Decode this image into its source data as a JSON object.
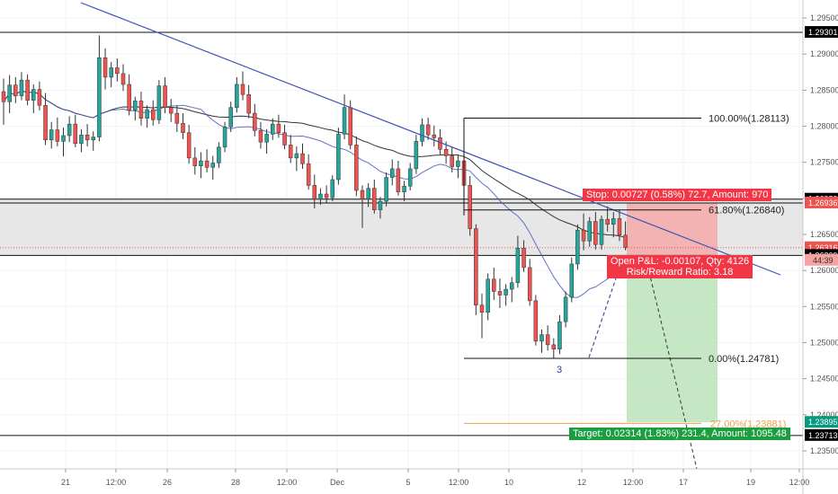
{
  "chart_data": {
    "type": "candlestick",
    "symbol_pair": "GBP/USD",
    "y_axis": {
      "range": [
        1.2325,
        1.2975
      ],
      "ticks": [
        "1.29500",
        "1.29000",
        "1.28500",
        "1.28000",
        "1.27500",
        "1.27000",
        "1.26500",
        "1.26000",
        "1.25500",
        "1.25000",
        "1.24500",
        "1.24000",
        "1.23500"
      ]
    },
    "x_axis": {
      "ticks": [
        "21",
        "12:00",
        "26",
        "28",
        "12:00",
        "Dec",
        "5",
        "12:00",
        "10",
        "12",
        "12:00",
        "17",
        "19",
        "12:00"
      ]
    },
    "price_tags": [
      {
        "value": 1.29301,
        "label": "1.29301",
        "color": "#000000"
      },
      {
        "value": 1.26989,
        "label": "1.26989",
        "color": "#000000"
      },
      {
        "value": 1.26936,
        "label": "1.26936",
        "color": "#ef5350"
      },
      {
        "value": 1.26316,
        "label": "1.26316",
        "color": "#ef5350"
      },
      {
        "value": 1.26209,
        "label": "1.26209",
        "color": "#000000"
      },
      {
        "value": 1.23895,
        "label": "1.23895",
        "color": "#089981"
      },
      {
        "value": 1.23713,
        "label": "1.23713",
        "color": "#000000"
      }
    ],
    "countdown": "44:39",
    "horizontal_levels": [
      1.29301,
      1.26989,
      1.26936,
      1.26209,
      1.23713
    ],
    "fibonacci": [
      {
        "label": "100.00%(1.28113)",
        "value": 1.28113
      },
      {
        "label": "61.80%(1.26840)",
        "value": 1.2684
      },
      {
        "label": "0.00%(1.24781)",
        "value": 1.24781
      },
      {
        "label": "27.00%(1.23881)",
        "value": 1.23881
      }
    ],
    "position": {
      "stop_text": "Stop: 0.00727 (0.58%) 72.7, Amount: 970",
      "pnl_text": "Open P&L: -0.00107, Qty: 4126",
      "rr_text": "Risk/Reward Ratio: 3.18",
      "target_text": "Target: 0.02314 (1.83%) 231.4, Amount: 1095.48",
      "entry": 1.26209,
      "stop": 1.26936,
      "target": 1.23895
    },
    "wave_label": "3",
    "ohlc": [
      [
        1.2848,
        1.2866,
        1.2802,
        1.2834
      ],
      [
        1.2834,
        1.2871,
        1.2818,
        1.2857
      ],
      [
        1.2857,
        1.2868,
        1.2832,
        1.2842
      ],
      [
        1.2842,
        1.2875,
        1.2836,
        1.2864
      ],
      [
        1.2864,
        1.2872,
        1.2829,
        1.2836
      ],
      [
        1.2836,
        1.2858,
        1.2818,
        1.2851
      ],
      [
        1.2851,
        1.2862,
        1.2822,
        1.2829
      ],
      [
        1.2829,
        1.2846,
        1.2774,
        1.2781
      ],
      [
        1.2781,
        1.2806,
        1.2769,
        1.2795
      ],
      [
        1.2795,
        1.2812,
        1.2772,
        1.2779
      ],
      [
        1.2779,
        1.2798,
        1.2758,
        1.2787
      ],
      [
        1.2787,
        1.2814,
        1.2778,
        1.2803
      ],
      [
        1.2803,
        1.2816,
        1.2771,
        1.2776
      ],
      [
        1.2776,
        1.2796,
        1.2764,
        1.2788
      ],
      [
        1.2788,
        1.2803,
        1.2772,
        1.2781
      ],
      [
        1.2781,
        1.2793,
        1.2766,
        1.2785
      ],
      [
        1.2785,
        1.2926,
        1.2779,
        1.2895
      ],
      [
        1.2895,
        1.2908,
        1.2851,
        1.2868
      ],
      [
        1.2868,
        1.2889,
        1.2854,
        1.2881
      ],
      [
        1.2881,
        1.2894,
        1.2862,
        1.2873
      ],
      [
        1.2873,
        1.2886,
        1.2849,
        1.2858
      ],
      [
        1.2858,
        1.2872,
        1.2815,
        1.2822
      ],
      [
        1.2822,
        1.2841,
        1.2808,
        1.2835
      ],
      [
        1.2835,
        1.2848,
        1.2801,
        1.2811
      ],
      [
        1.2811,
        1.2829,
        1.2798,
        1.2823
      ],
      [
        1.2823,
        1.2836,
        1.2801,
        1.2809
      ],
      [
        1.2809,
        1.2864,
        1.2803,
        1.2856
      ],
      [
        1.2856,
        1.2868,
        1.2818,
        1.2826
      ],
      [
        1.2826,
        1.2838,
        1.2806,
        1.2818
      ],
      [
        1.2818,
        1.2829,
        1.2792,
        1.2804
      ],
      [
        1.2804,
        1.2818,
        1.2782,
        1.2791
      ],
      [
        1.2791,
        1.2802,
        1.2748,
        1.2756
      ],
      [
        1.2756,
        1.2771,
        1.2733,
        1.2745
      ],
      [
        1.2745,
        1.2764,
        1.2728,
        1.2752
      ],
      [
        1.2752,
        1.2768,
        1.2736,
        1.2743
      ],
      [
        1.2743,
        1.2759,
        1.2726,
        1.2749
      ],
      [
        1.2749,
        1.2778,
        1.2742,
        1.2771
      ],
      [
        1.2771,
        1.2806,
        1.2764,
        1.2799
      ],
      [
        1.2799,
        1.2834,
        1.2792,
        1.2826
      ],
      [
        1.2826,
        1.2868,
        1.2819,
        1.2858
      ],
      [
        1.2858,
        1.2876,
        1.2836,
        1.2844
      ],
      [
        1.2844,
        1.2857,
        1.2811,
        1.2818
      ],
      [
        1.2818,
        1.2831,
        1.2786,
        1.2794
      ],
      [
        1.2794,
        1.2806,
        1.2769,
        1.2778
      ],
      [
        1.2778,
        1.2796,
        1.2762,
        1.2789
      ],
      [
        1.2789,
        1.2811,
        1.2781,
        1.2803
      ],
      [
        1.2803,
        1.2816,
        1.2784,
        1.2791
      ],
      [
        1.2791,
        1.2802,
        1.2768,
        1.2774
      ],
      [
        1.2774,
        1.2788,
        1.2749,
        1.2756
      ],
      [
        1.2756,
        1.2772,
        1.2738,
        1.2762
      ],
      [
        1.2762,
        1.2776,
        1.2741,
        1.2748
      ],
      [
        1.2748,
        1.2761,
        1.2712,
        1.2718
      ],
      [
        1.2718,
        1.2733,
        1.2686,
        1.2699
      ],
      [
        1.2699,
        1.2714,
        1.2691,
        1.2706
      ],
      [
        1.2706,
        1.2718,
        1.2694,
        1.2701
      ],
      [
        1.2701,
        1.2732,
        1.2696,
        1.2726
      ],
      [
        1.2726,
        1.2798,
        1.2719,
        1.2789
      ],
      [
        1.2789,
        1.2844,
        1.2782,
        1.2826
      ],
      [
        1.2826,
        1.2836,
        1.2768,
        1.2774
      ],
      [
        1.2774,
        1.2786,
        1.2703,
        1.2711
      ],
      [
        1.2711,
        1.2718,
        1.2659,
        1.2699
      ],
      [
        1.2699,
        1.2721,
        1.2688,
        1.2714
      ],
      [
        1.2714,
        1.2726,
        1.2679,
        1.2684
      ],
      [
        1.2684,
        1.2702,
        1.2672,
        1.2696
      ],
      [
        1.2696,
        1.2736,
        1.2689,
        1.2729
      ],
      [
        1.2729,
        1.2754,
        1.2718,
        1.2741
      ],
      [
        1.2741,
        1.2752,
        1.2704,
        1.2709
      ],
      [
        1.2709,
        1.2724,
        1.2696,
        1.2717
      ],
      [
        1.2717,
        1.2749,
        1.2711,
        1.2741
      ],
      [
        1.2741,
        1.2788,
        1.2734,
        1.2779
      ],
      [
        1.2779,
        1.2811,
        1.2772,
        1.2802
      ],
      [
        1.2802,
        1.2812,
        1.2781,
        1.2788
      ],
      [
        1.2788,
        1.2801,
        1.2772,
        1.2784
      ],
      [
        1.2784,
        1.2796,
        1.2761,
        1.2768
      ],
      [
        1.2768,
        1.2779,
        1.2748,
        1.2759
      ],
      [
        1.2759,
        1.2771,
        1.2736,
        1.2744
      ],
      [
        1.2744,
        1.2761,
        1.2728,
        1.2752
      ],
      [
        1.2752,
        1.2766,
        1.2702,
        1.2718
      ],
      [
        1.2718,
        1.2731,
        1.2648,
        1.2658
      ],
      [
        1.2658,
        1.2664,
        1.2538,
        1.2552
      ],
      [
        1.2552,
        1.2568,
        1.2506,
        1.2542
      ],
      [
        1.2542,
        1.2596,
        1.2531,
        1.2588
      ],
      [
        1.2588,
        1.2604,
        1.2559,
        1.2571
      ],
      [
        1.2571,
        1.2589,
        1.2548,
        1.2566
      ],
      [
        1.2566,
        1.2581,
        1.2551,
        1.2574
      ],
      [
        1.2574,
        1.2591,
        1.2556,
        1.2583
      ],
      [
        1.2583,
        1.2648,
        1.2576,
        1.2631
      ],
      [
        1.2631,
        1.2642,
        1.2598,
        1.2604
      ],
      [
        1.2604,
        1.2616,
        1.2551,
        1.2558
      ],
      [
        1.2558,
        1.2566,
        1.2496,
        1.2502
      ],
      [
        1.2502,
        1.2518,
        1.2486,
        1.2511
      ],
      [
        1.2511,
        1.2524,
        1.2489,
        1.2497
      ],
      [
        1.2497,
        1.2506,
        1.2478,
        1.2491
      ],
      [
        1.2491,
        1.2538,
        1.2484,
        1.2529
      ],
      [
        1.2529,
        1.2571,
        1.2521,
        1.2563
      ],
      [
        1.2563,
        1.2618,
        1.2556,
        1.2609
      ],
      [
        1.2609,
        1.2664,
        1.2601,
        1.2656
      ],
      [
        1.2656,
        1.2679,
        1.2628,
        1.2641
      ],
      [
        1.2641,
        1.2674,
        1.2633,
        1.2668
      ],
      [
        1.2668,
        1.2681,
        1.2629,
        1.2636
      ],
      [
        1.2636,
        1.2676,
        1.2629,
        1.2671
      ],
      [
        1.2671,
        1.2689,
        1.2654,
        1.2664
      ],
      [
        1.2664,
        1.2681,
        1.2646,
        1.2672
      ],
      [
        1.2672,
        1.2684,
        1.2641,
        1.2649
      ],
      [
        1.2649,
        1.2668,
        1.2628,
        1.2632
      ]
    ]
  }
}
